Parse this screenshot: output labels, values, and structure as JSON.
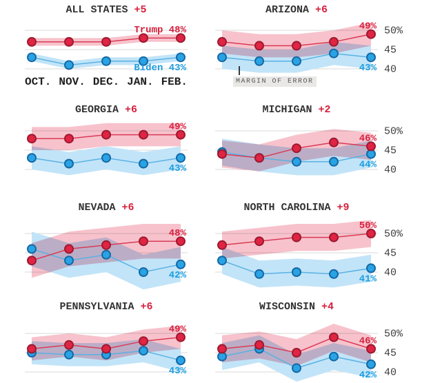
{
  "annotation": {
    "moe_label": "MARGIN OF ERROR"
  },
  "colors": {
    "trump": "#d6213d",
    "biden": "#1b9ddf",
    "trump_line": "#d93a55",
    "biden_line": "#58b1e4",
    "trump_dot": "#e02443",
    "trump_dot_stroke": "#9c1a31",
    "biden_dot": "#2aa3e4",
    "biden_dot_stroke": "#1568a4",
    "trump_band": "#f7c2cc",
    "biden_band": "#c2e4f8",
    "grid": "#d9d9d9",
    "title_text": "#333333",
    "axis_text": "#3d3d3d"
  },
  "chart_data": {
    "type": "line",
    "x": [
      "OCT.",
      "NOV.",
      "DEC.",
      "JAN.",
      "FEB."
    ],
    "ylim": [
      36,
      53
    ],
    "yticks": [
      50,
      45,
      40
    ],
    "ytick_labels": [
      "50%",
      "45",
      "40"
    ],
    "grid": true,
    "panels": [
      {
        "state": "ALL STATES",
        "lead": "+5",
        "moe": 1,
        "trump": {
          "name": "Trump",
          "values": [
            47,
            47,
            47,
            48,
            48
          ],
          "label": "Trump 48%"
        },
        "biden": {
          "name": "Biden",
          "values": [
            43,
            41,
            42,
            42,
            43
          ],
          "label": "Biden 43%"
        }
      },
      {
        "state": "ARIZONA",
        "lead": "+6",
        "moe": 3,
        "trump": {
          "name": "Trump",
          "values": [
            47,
            46,
            46,
            47,
            49
          ],
          "label": "49%"
        },
        "biden": {
          "name": "Biden",
          "values": [
            43,
            42,
            42,
            44,
            43
          ],
          "label": "43%"
        }
      },
      {
        "state": "GEORGIA",
        "lead": "+6",
        "moe": 3,
        "trump": {
          "name": "Trump",
          "values": [
            48,
            48,
            49,
            49,
            49
          ],
          "label": "49%"
        },
        "biden": {
          "name": "Biden",
          "values": [
            43,
            41.5,
            43,
            41.5,
            43
          ],
          "label": "43%"
        }
      },
      {
        "state": "MICHIGAN",
        "lead": "+2",
        "moe": 3.5,
        "trump": {
          "name": "Trump",
          "values": [
            44,
            43,
            45.5,
            47,
            46
          ],
          "label": "46%"
        },
        "biden": {
          "name": "Biden",
          "values": [
            44.5,
            43,
            42,
            42,
            44
          ],
          "label": "44%"
        }
      },
      {
        "state": "NEVADA",
        "lead": "+6",
        "moe": 4.5,
        "trump": {
          "name": "Trump",
          "values": [
            43,
            46,
            47,
            48,
            48
          ],
          "label": "48%"
        },
        "biden": {
          "name": "Biden",
          "values": [
            46,
            43,
            44.5,
            40,
            42
          ],
          "label": "42%"
        }
      },
      {
        "state": "NORTH CAROLINA",
        "lead": "+9",
        "moe": 3.5,
        "trump": {
          "name": "Trump",
          "values": [
            47,
            48,
            49,
            49,
            50
          ],
          "label": "50%"
        },
        "biden": {
          "name": "Biden",
          "values": [
            43,
            39.5,
            40,
            39.5,
            41
          ],
          "label": "41%"
        }
      },
      {
        "state": "PENNSYLVANIA",
        "lead": "+6",
        "moe": 3,
        "trump": {
          "name": "Trump",
          "values": [
            46,
            47,
            46,
            48,
            49
          ],
          "label": "49%"
        },
        "biden": {
          "name": "Biden",
          "values": [
            45,
            44.5,
            44.5,
            45.5,
            43
          ],
          "label": "43%"
        }
      },
      {
        "state": "WISCONSIN",
        "lead": "+4",
        "moe": 3.5,
        "trump": {
          "name": "Trump",
          "values": [
            46,
            47,
            45,
            49,
            46
          ],
          "label": "46%"
        },
        "biden": {
          "name": "Biden",
          "values": [
            44,
            46,
            41,
            44,
            42
          ],
          "label": "42%"
        }
      }
    ]
  }
}
